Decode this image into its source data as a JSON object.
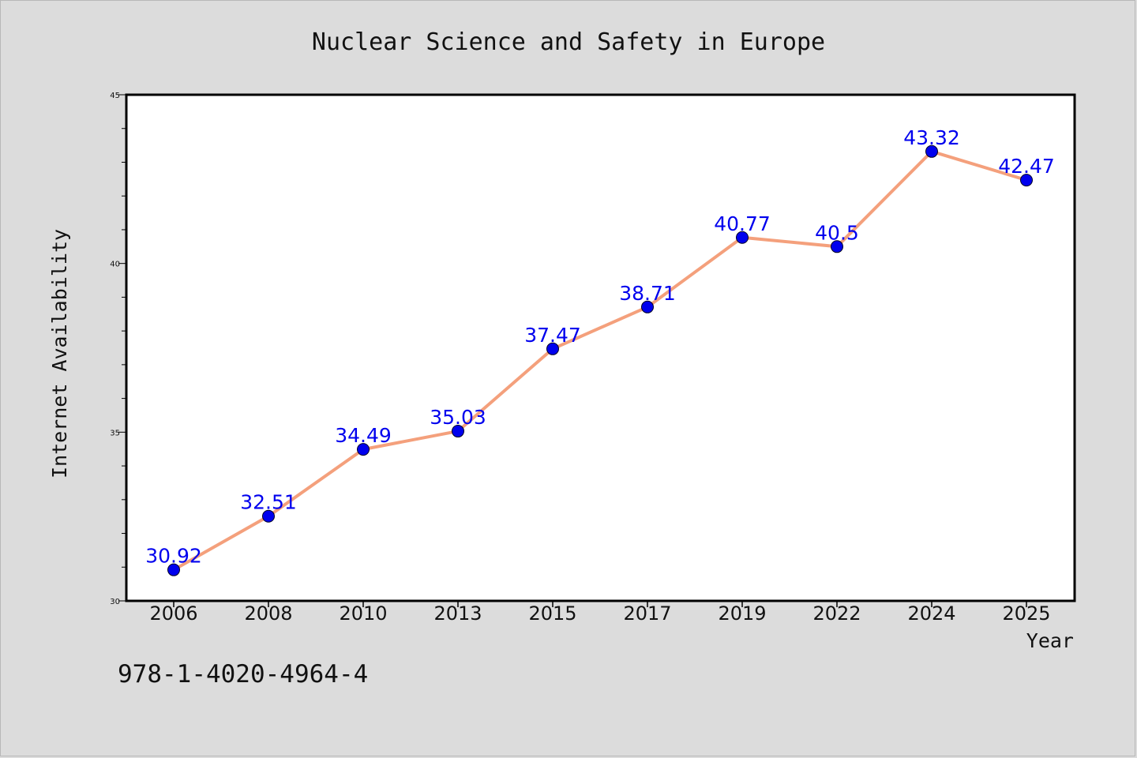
{
  "chart_data": {
    "type": "line",
    "title": "Nuclear Science and Safety in Europe",
    "xlabel": "Year",
    "ylabel": "Internet Availability",
    "categories": [
      "2006",
      "2008",
      "2010",
      "2013",
      "2015",
      "2017",
      "2019",
      "2022",
      "2024",
      "2025"
    ],
    "series": [
      {
        "values": [
          30.92,
          32.51,
          34.49,
          35.03,
          37.47,
          38.71,
          40.77,
          40.5,
          43.32,
          42.47
        ],
        "labels": [
          "30.92",
          "32.51",
          "34.49",
          "35.03",
          "37.47",
          "38.71",
          "40.77",
          "40.5",
          "43.32",
          "42.47"
        ],
        "line_color": "#f4a07c",
        "marker_color": "#0000ee",
        "label_color": "#0000ee"
      }
    ],
    "ylim": [
      30,
      45
    ],
    "yticks": [
      "30",
      "35",
      "40",
      "45"
    ],
    "grid": false,
    "legend": "none"
  },
  "footer": {
    "isbn": "978-1-4020-4964-4"
  },
  "colors": {
    "background": "#dcdcdc",
    "plot_background": "#ffffff",
    "axis": "#000000"
  }
}
